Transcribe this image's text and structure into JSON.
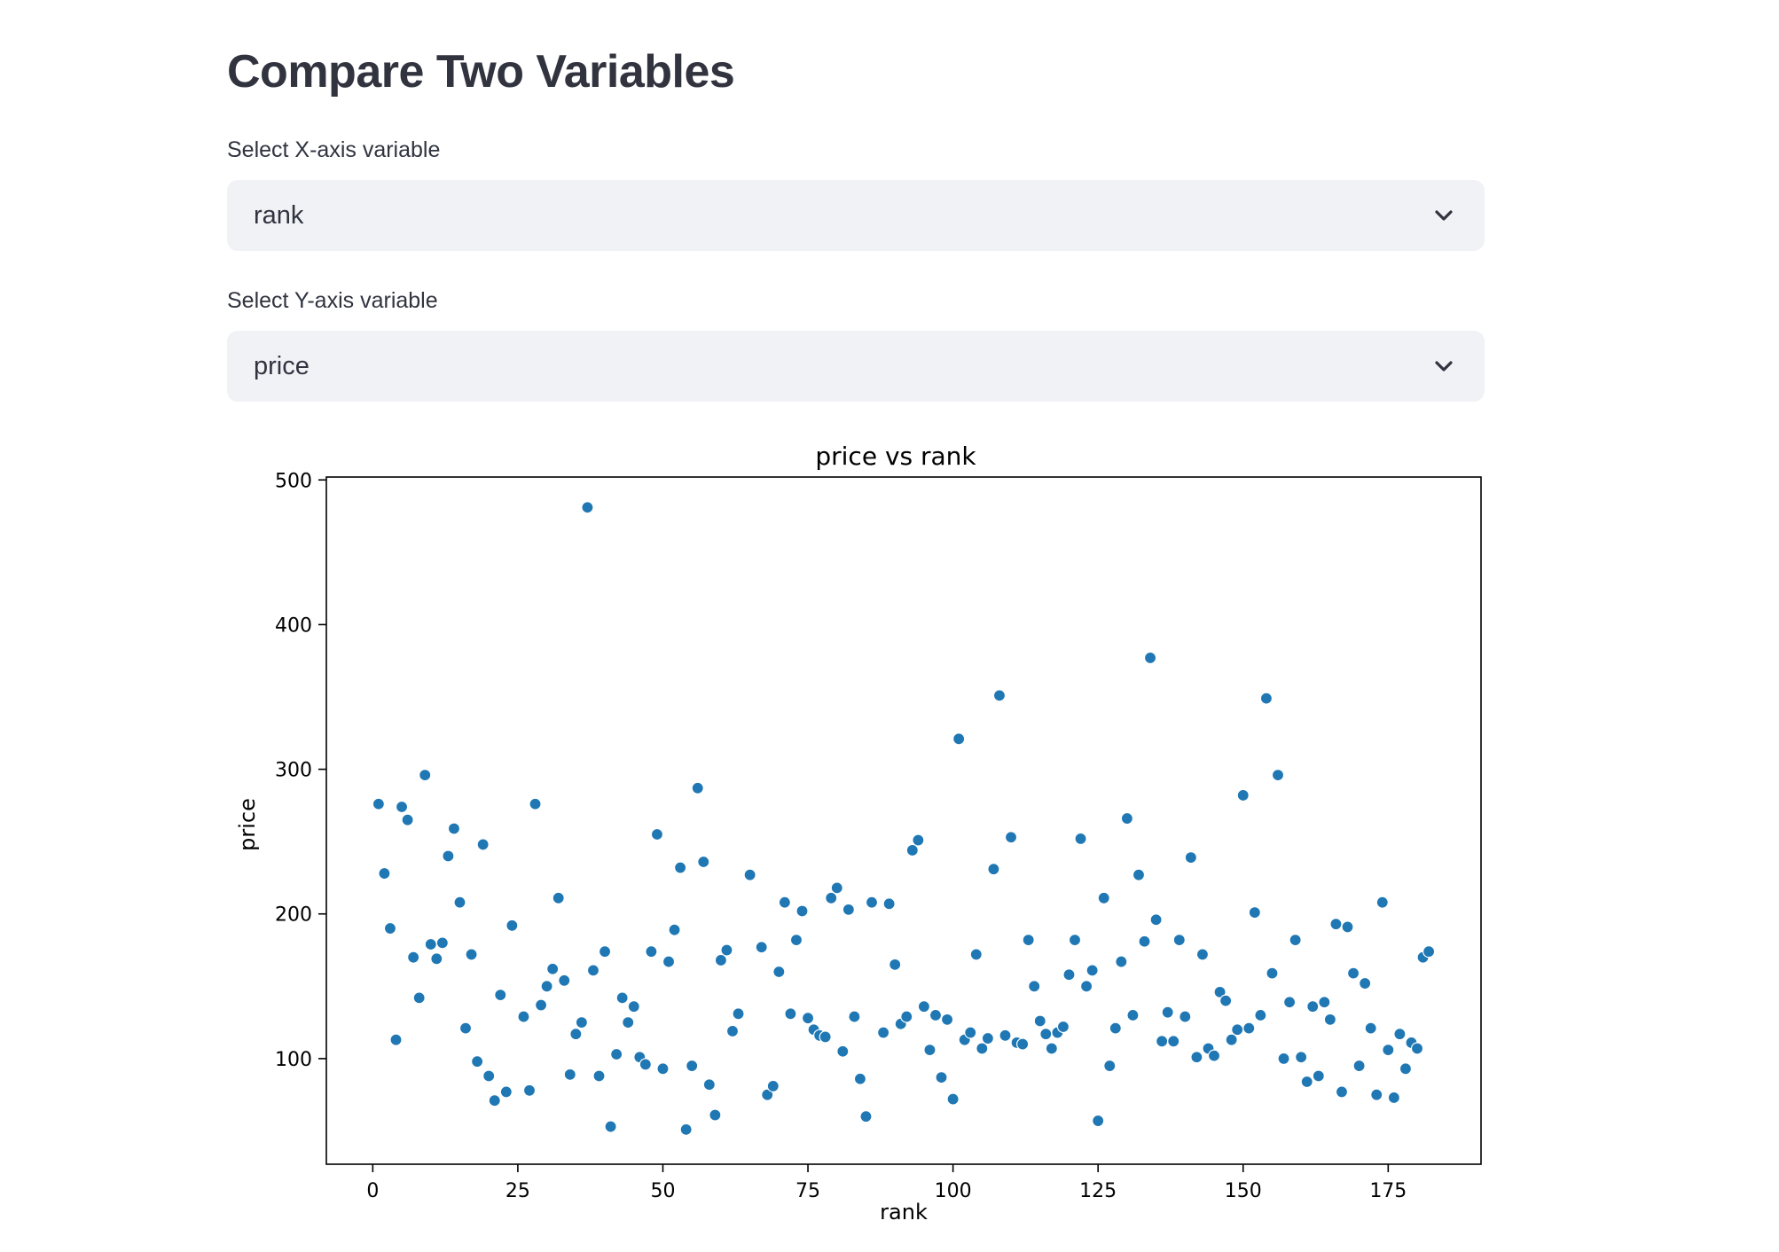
{
  "page": {
    "title": "Compare Two Variables"
  },
  "x_select": {
    "label": "Select X-axis variable",
    "value": "rank",
    "icon": "chevron-down-icon"
  },
  "y_select": {
    "label": "Select Y-axis variable",
    "value": "price",
    "icon": "chevron-down-icon"
  },
  "colors": {
    "point": "#1f77b4",
    "select_bg": "#f0f2f6",
    "text": "#31333f"
  },
  "chart_data": {
    "type": "scatter",
    "title": "price vs rank",
    "xlabel": "rank",
    "ylabel": "price",
    "xlim": [
      -8,
      191
    ],
    "ylim": [
      27,
      502
    ],
    "xticks": [
      0,
      25,
      50,
      75,
      100,
      125,
      150,
      175
    ],
    "yticks": [
      100,
      200,
      300,
      400,
      500
    ],
    "grid": false,
    "legend": "none",
    "points": [
      [
        1,
        276
      ],
      [
        2,
        228
      ],
      [
        3,
        190
      ],
      [
        4,
        113
      ],
      [
        5,
        274
      ],
      [
        6,
        265
      ],
      [
        7,
        170
      ],
      [
        8,
        142
      ],
      [
        9,
        296
      ],
      [
        10,
        179
      ],
      [
        11,
        169
      ],
      [
        12,
        180
      ],
      [
        13,
        240
      ],
      [
        14,
        259
      ],
      [
        15,
        208
      ],
      [
        16,
        121
      ],
      [
        17,
        172
      ],
      [
        18,
        98
      ],
      [
        19,
        248
      ],
      [
        20,
        88
      ],
      [
        21,
        71
      ],
      [
        22,
        144
      ],
      [
        23,
        77
      ],
      [
        24,
        192
      ],
      [
        26,
        129
      ],
      [
        27,
        78
      ],
      [
        28,
        276
      ],
      [
        29,
        137
      ],
      [
        30,
        150
      ],
      [
        31,
        162
      ],
      [
        32,
        211
      ],
      [
        33,
        154
      ],
      [
        34,
        89
      ],
      [
        35,
        117
      ],
      [
        36,
        125
      ],
      [
        37,
        481
      ],
      [
        38,
        161
      ],
      [
        39,
        88
      ],
      [
        40,
        174
      ],
      [
        41,
        53
      ],
      [
        42,
        103
      ],
      [
        43,
        142
      ],
      [
        44,
        125
      ],
      [
        45,
        136
      ],
      [
        46,
        101
      ],
      [
        47,
        96
      ],
      [
        48,
        174
      ],
      [
        49,
        255
      ],
      [
        50,
        93
      ],
      [
        51,
        167
      ],
      [
        52,
        189
      ],
      [
        53,
        232
      ],
      [
        54,
        51
      ],
      [
        55,
        95
      ],
      [
        56,
        287
      ],
      [
        57,
        236
      ],
      [
        58,
        82
      ],
      [
        59,
        61
      ],
      [
        60,
        168
      ],
      [
        61,
        175
      ],
      [
        62,
        119
      ],
      [
        63,
        131
      ],
      [
        65,
        227
      ],
      [
        67,
        177
      ],
      [
        68,
        75
      ],
      [
        69,
        81
      ],
      [
        70,
        160
      ],
      [
        71,
        208
      ],
      [
        72,
        131
      ],
      [
        73,
        182
      ],
      [
        74,
        202
      ],
      [
        75,
        128
      ],
      [
        76,
        120
      ],
      [
        77,
        116
      ],
      [
        78,
        115
      ],
      [
        79,
        211
      ],
      [
        80,
        218
      ],
      [
        81,
        105
      ],
      [
        82,
        203
      ],
      [
        83,
        129
      ],
      [
        84,
        86
      ],
      [
        85,
        60
      ],
      [
        86,
        208
      ],
      [
        88,
        118
      ],
      [
        89,
        207
      ],
      [
        90,
        165
      ],
      [
        91,
        124
      ],
      [
        92,
        129
      ],
      [
        93,
        244
      ],
      [
        94,
        251
      ],
      [
        95,
        136
      ],
      [
        96,
        106
      ],
      [
        97,
        130
      ],
      [
        98,
        87
      ],
      [
        99,
        127
      ],
      [
        100,
        72
      ],
      [
        101,
        321
      ],
      [
        102,
        113
      ],
      [
        103,
        118
      ],
      [
        104,
        172
      ],
      [
        105,
        107
      ],
      [
        106,
        114
      ],
      [
        107,
        231
      ],
      [
        108,
        351
      ],
      [
        109,
        116
      ],
      [
        110,
        253
      ],
      [
        111,
        111
      ],
      [
        112,
        110
      ],
      [
        113,
        182
      ],
      [
        114,
        150
      ],
      [
        115,
        126
      ],
      [
        116,
        117
      ],
      [
        117,
        107
      ],
      [
        118,
        118
      ],
      [
        119,
        122
      ],
      [
        120,
        158
      ],
      [
        121,
        182
      ],
      [
        122,
        252
      ],
      [
        123,
        150
      ],
      [
        124,
        161
      ],
      [
        125,
        57
      ],
      [
        126,
        211
      ],
      [
        127,
        95
      ],
      [
        128,
        121
      ],
      [
        129,
        167
      ],
      [
        130,
        266
      ],
      [
        131,
        130
      ],
      [
        132,
        227
      ],
      [
        133,
        181
      ],
      [
        134,
        377
      ],
      [
        135,
        196
      ],
      [
        136,
        112
      ],
      [
        137,
        132
      ],
      [
        138,
        112
      ],
      [
        139,
        182
      ],
      [
        140,
        129
      ],
      [
        141,
        239
      ],
      [
        142,
        101
      ],
      [
        143,
        172
      ],
      [
        144,
        107
      ],
      [
        145,
        102
      ],
      [
        146,
        146
      ],
      [
        147,
        140
      ],
      [
        148,
        113
      ],
      [
        149,
        120
      ],
      [
        150,
        282
      ],
      [
        151,
        121
      ],
      [
        152,
        201
      ],
      [
        153,
        130
      ],
      [
        154,
        349
      ],
      [
        155,
        159
      ],
      [
        156,
        296
      ],
      [
        157,
        100
      ],
      [
        158,
        139
      ],
      [
        159,
        182
      ],
      [
        160,
        101
      ],
      [
        161,
        84
      ],
      [
        162,
        136
      ],
      [
        163,
        88
      ],
      [
        164,
        139
      ],
      [
        165,
        127
      ],
      [
        166,
        193
      ],
      [
        167,
        77
      ],
      [
        168,
        191
      ],
      [
        169,
        159
      ],
      [
        170,
        95
      ],
      [
        171,
        152
      ],
      [
        172,
        121
      ],
      [
        173,
        75
      ],
      [
        174,
        208
      ],
      [
        175,
        106
      ],
      [
        176,
        73
      ],
      [
        177,
        117
      ],
      [
        178,
        93
      ],
      [
        179,
        111
      ],
      [
        180,
        107
      ],
      [
        181,
        170
      ],
      [
        182,
        174
      ]
    ]
  }
}
